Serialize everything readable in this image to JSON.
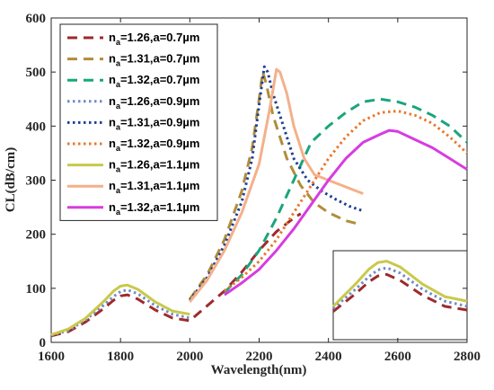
{
  "chart_data": {
    "type": "line",
    "title": "",
    "xlabel": "Wavelength(nm)",
    "ylabel": "CL(dB/cm)",
    "xlim": [
      1600,
      2800
    ],
    "ylim": [
      0,
      600
    ],
    "xticks": [
      1600,
      1800,
      2000,
      2200,
      2400,
      2600,
      2800
    ],
    "yticks": [
      0,
      100,
      200,
      300,
      400,
      500,
      600
    ],
    "grid": false,
    "legend_position": "top-left",
    "series": [
      {
        "name_parts": [
          "n",
          "a",
          "=1.26,a=0.7µm"
        ],
        "color": "#9e2a2b",
        "dash": "dashed",
        "x": [
          1600,
          1650,
          1700,
          1750,
          1780,
          1800,
          1820,
          1850,
          1900,
          1950,
          2000,
          2100,
          2150,
          2200,
          2250,
          2300,
          2320
        ],
        "y": [
          12,
          20,
          38,
          62,
          78,
          86,
          88,
          80,
          60,
          45,
          40,
          95,
          130,
          170,
          205,
          230,
          238
        ]
      },
      {
        "name_parts": [
          "n",
          "a",
          "=1.31,a=0.7µm"
        ],
        "color": "#b08d3a",
        "dash": "dashed",
        "x": [
          2000,
          2050,
          2100,
          2150,
          2180,
          2200,
          2210,
          2220,
          2240,
          2280,
          2320,
          2360,
          2400,
          2450,
          2480
        ],
        "y": [
          80,
          125,
          190,
          280,
          360,
          450,
          500,
          480,
          420,
          340,
          290,
          258,
          240,
          225,
          220
        ]
      },
      {
        "name_parts": [
          "n",
          "a",
          "=1.32,a=0.7µm"
        ],
        "color": "#1aa57c",
        "dash": "dashed",
        "x": [
          2100,
          2150,
          2200,
          2250,
          2300,
          2350,
          2400,
          2450,
          2500,
          2550,
          2600,
          2650,
          2700,
          2750,
          2800
        ],
        "y": [
          92,
          125,
          170,
          230,
          300,
          370,
          400,
          425,
          445,
          450,
          445,
          435,
          420,
          400,
          370
        ]
      },
      {
        "name_parts": [
          "n",
          "a",
          "=1.26,a=0.9µm"
        ],
        "color": "#6d8cc9",
        "dash": "dotted",
        "x": [
          1600,
          1650,
          1700,
          1750,
          1780,
          1800,
          1820,
          1850,
          1900,
          1950,
          2000
        ],
        "y": [
          13,
          22,
          42,
          68,
          85,
          94,
          97,
          90,
          68,
          52,
          45
        ]
      },
      {
        "name_parts": [
          "n",
          "a",
          "=1.31,a=0.9µm"
        ],
        "color": "#1c3f94",
        "dash": "dotted",
        "x": [
          2000,
          2050,
          2100,
          2150,
          2180,
          2200,
          2215,
          2225,
          2240,
          2270,
          2300,
          2340,
          2380,
          2420,
          2460,
          2500
        ],
        "y": [
          78,
          120,
          180,
          260,
          340,
          440,
          510,
          500,
          460,
          400,
          340,
          300,
          280,
          265,
          252,
          243
        ]
      },
      {
        "name_parts": [
          "n",
          "a",
          "=1.32,a=0.9µm"
        ],
        "color": "#e8782a",
        "dash": "dotted",
        "x": [
          2100,
          2150,
          2200,
          2250,
          2300,
          2350,
          2400,
          2450,
          2500,
          2550,
          2600,
          2650,
          2700,
          2750,
          2800
        ],
        "y": [
          95,
          120,
          150,
          190,
          240,
          290,
          340,
          380,
          410,
          425,
          428,
          420,
          405,
          380,
          350
        ]
      },
      {
        "name_parts": [
          "n",
          "a",
          "=1.26,a=1.1µm"
        ],
        "color": "#c9c94a",
        "dash": "solid",
        "x": [
          1600,
          1650,
          1700,
          1750,
          1780,
          1800,
          1820,
          1850,
          1900,
          1950,
          2000
        ],
        "y": [
          14,
          25,
          45,
          75,
          95,
          104,
          106,
          98,
          75,
          58,
          52
        ]
      },
      {
        "name_parts": [
          "n",
          "a",
          "=1.31,a=1.1µm"
        ],
        "color": "#f4b08a",
        "dash": "solid",
        "x": [
          2000,
          2050,
          2100,
          2150,
          2200,
          2230,
          2250,
          2260,
          2280,
          2300,
          2330,
          2360,
          2400,
          2440,
          2480,
          2500
        ],
        "y": [
          75,
          115,
          170,
          240,
          330,
          430,
          505,
          500,
          460,
          400,
          340,
          310,
          300,
          290,
          280,
          275
        ]
      },
      {
        "name_parts": [
          "n",
          "a",
          "=1.32,a=1.1µm"
        ],
        "color": "#d73ce0",
        "dash": "solid",
        "x": [
          2100,
          2150,
          2200,
          2250,
          2300,
          2350,
          2400,
          2450,
          2500,
          2550,
          2575,
          2600,
          2650,
          2700,
          2750,
          2800
        ],
        "y": [
          88,
          110,
          135,
          170,
          210,
          255,
          300,
          340,
          370,
          385,
          392,
          390,
          375,
          360,
          340,
          320
        ]
      }
    ],
    "inset": {
      "series_order": [
        0,
        3,
        6
      ],
      "x": [
        1700,
        1750,
        1780,
        1800,
        1820,
        1850,
        1900,
        1950,
        2000
      ],
      "x_range": [
        1700,
        2000
      ],
      "y_range": [
        0,
        120
      ]
    }
  }
}
